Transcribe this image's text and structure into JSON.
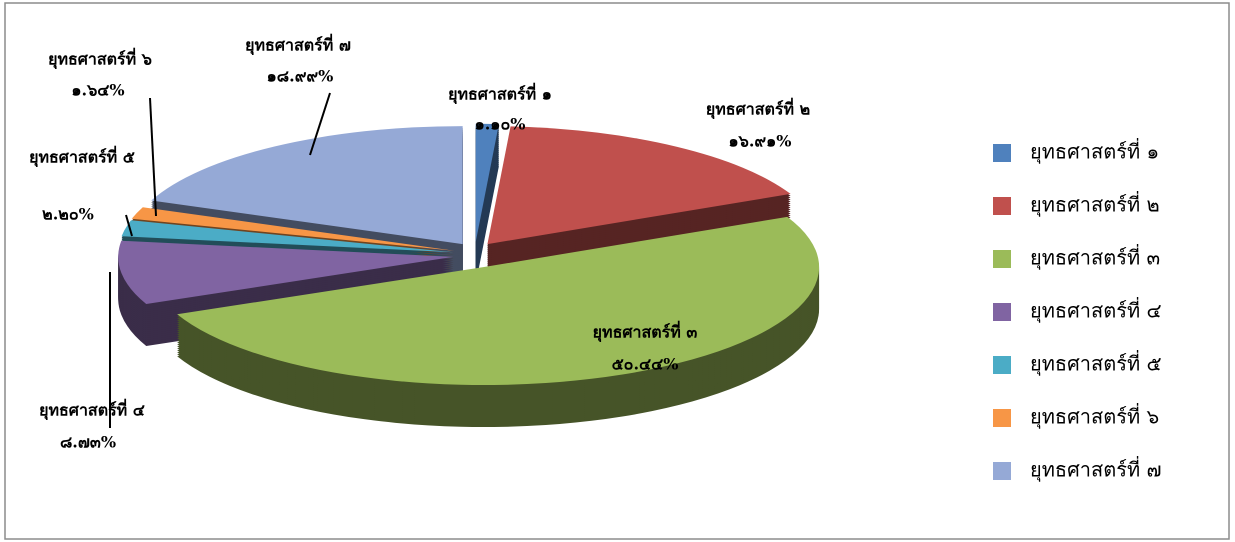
{
  "chart_data": {
    "type": "pie3d",
    "categories": [
      "ยุทธศาสตร์ที่ ๑",
      "ยุทธศาสตร์ที่ ๒",
      "ยุทธศาสตร์ที่ ๓",
      "ยุทธศาสตร์ที่ ๔",
      "ยุทธศาสตร์ที่ ๕",
      "ยุทธศาสตร์ที่ ๖",
      "ยุทธศาสตร์ที่ ๗"
    ],
    "values": [
      1.1,
      16.91,
      50.44,
      8.73,
      2.2,
      1.64,
      18.99
    ],
    "value_labels": [
      "๑.๑๐%",
      "๑๖.๙๑%",
      "๕๐.๔๔%",
      "๘.๗๓%",
      "๒.๒๐%",
      "๑.๖๔%",
      "๑๘.๙๙%"
    ],
    "colors": [
      "#4f81bd",
      "#c0504d",
      "#9bbb59",
      "#8064a2",
      "#4bacc6",
      "#f79646",
      "#95a9d6"
    ],
    "legend": "right"
  }
}
